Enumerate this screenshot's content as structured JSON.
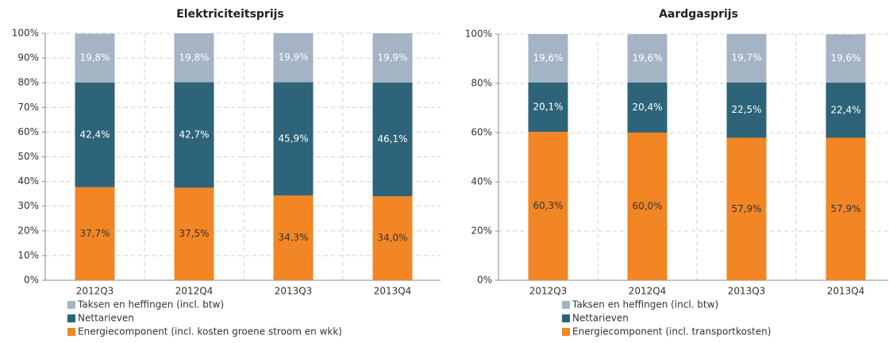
{
  "chart_data": [
    {
      "type": "bar",
      "stacked": true,
      "title": "Elektriciteitsprijs",
      "categories": [
        "2012Q3",
        "2012Q4",
        "2013Q3",
        "2013Q4"
      ],
      "series": [
        {
          "name": "Taksen en heffingen (incl. btw)",
          "color": "#a5b4c4",
          "values": [
            19.8,
            19.8,
            19.9,
            19.9
          ],
          "value_labels": [
            "19,8%",
            "19,8%",
            "19,9%",
            "19,9%"
          ]
        },
        {
          "name": "Nettarieven",
          "color": "#2e6479",
          "values": [
            42.4,
            42.7,
            45.9,
            46.1
          ],
          "value_labels": [
            "42,4%",
            "42,7%",
            "45,9%",
            "46,1%"
          ]
        },
        {
          "name": "Energiecomponent (incl. kosten groene stroom en wkk)",
          "color": "#f28624",
          "values": [
            37.7,
            37.5,
            34.3,
            34.0
          ],
          "value_labels": [
            "37,7%",
            "37,5%",
            "34,3%",
            "34,0%"
          ]
        }
      ],
      "ylim": [
        0,
        100
      ],
      "yticks": [
        {
          "value": 0,
          "label": "0%"
        },
        {
          "value": 10,
          "label": "10%"
        },
        {
          "value": 20,
          "label": "20%"
        },
        {
          "value": 30,
          "label": "30%"
        },
        {
          "value": 40,
          "label": "40%"
        },
        {
          "value": 50,
          "label": "50%"
        },
        {
          "value": 60,
          "label": "60%"
        },
        {
          "value": 70,
          "label": "70%"
        },
        {
          "value": 80,
          "label": "80%"
        },
        {
          "value": 90,
          "label": "90%"
        },
        {
          "value": 100,
          "label": "100%"
        }
      ],
      "grid": true,
      "legend": "bottom"
    },
    {
      "type": "bar",
      "stacked": true,
      "title": "Aardgasprijs",
      "categories": [
        "2012Q3",
        "2012Q4",
        "2013Q3",
        "2013Q4"
      ],
      "series": [
        {
          "name": "Taksen en heffingen (incl. btw)",
          "color": "#a5b4c4",
          "values": [
            19.6,
            19.6,
            19.7,
            19.6
          ],
          "value_labels": [
            "19,6%",
            "19,6%",
            "19,7%",
            "19,6%"
          ]
        },
        {
          "name": "Nettarieven",
          "color": "#2e6479",
          "values": [
            20.1,
            20.4,
            22.5,
            22.4
          ],
          "value_labels": [
            "20,1%",
            "20,4%",
            "22,5%",
            "22,4%"
          ]
        },
        {
          "name": "Energiecomponent (incl. transportkosten)",
          "color": "#f28624",
          "values": [
            60.3,
            60.0,
            57.9,
            57.9
          ],
          "value_labels": [
            "60,3%",
            "60,0%",
            "57,9%",
            "57,9%"
          ]
        }
      ],
      "ylim": [
        0,
        100
      ],
      "yticks": [
        {
          "value": 0,
          "label": "0%"
        },
        {
          "value": 20,
          "label": "20%"
        },
        {
          "value": 40,
          "label": "40%"
        },
        {
          "value": 60,
          "label": "60%"
        },
        {
          "value": 80,
          "label": "80%"
        },
        {
          "value": 100,
          "label": "100%"
        }
      ],
      "grid": true,
      "legend": "bottom"
    }
  ]
}
